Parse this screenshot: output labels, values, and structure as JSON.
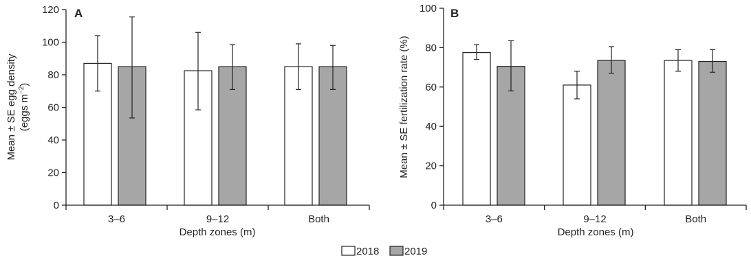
{
  "legend": {
    "entries": [
      {
        "label": "2018",
        "color": "#ffffff"
      },
      {
        "label": "2019",
        "color": "#a6a6a6"
      }
    ]
  },
  "chart_data": [
    {
      "type": "bar",
      "panel_label": "A",
      "categories": [
        "3–6",
        "9–12",
        "Both"
      ],
      "series": [
        {
          "name": "2018",
          "values": [
            87,
            82.5,
            85
          ],
          "se_low": [
            70,
            58.5,
            71
          ],
          "se_high": [
            104,
            106,
            99
          ],
          "color": "#ffffff"
        },
        {
          "name": "2019",
          "values": [
            85,
            85,
            85
          ],
          "se_low": [
            53.5,
            71,
            71
          ],
          "se_high": [
            115.5,
            98.5,
            98
          ],
          "color": "#a6a6a6"
        }
      ],
      "xlabel": "Depth zones (m)",
      "ylabel_line1": "Mean ± SE egg density",
      "ylabel_line2_prefix": "(eggs m",
      "ylabel_line2_sup": "−2",
      "ylabel_line2_suffix": ")",
      "ylim": [
        0,
        120
      ],
      "yticks": [
        "0",
        "20",
        "40",
        "60",
        "80",
        "100",
        "120"
      ],
      "grid": false,
      "legend_position": "bottom-center"
    },
    {
      "type": "bar",
      "panel_label": "B",
      "categories": [
        "3–6",
        "9–12",
        "Both"
      ],
      "series": [
        {
          "name": "2018",
          "values": [
            77.5,
            61,
            73.5
          ],
          "se_low": [
            74,
            54,
            68
          ],
          "se_high": [
            81.5,
            68,
            79
          ],
          "color": "#ffffff"
        },
        {
          "name": "2019",
          "values": [
            70.5,
            73.5,
            73
          ],
          "se_low": [
            58,
            67,
            67.5
          ],
          "se_high": [
            83.5,
            80.5,
            79
          ],
          "color": "#a6a6a6"
        }
      ],
      "xlabel": "Depth zones (m)",
      "ylabel": "Mean ± SE fertilization rate (%)",
      "ylim": [
        0,
        100
      ],
      "yticks": [
        "0",
        "20",
        "40",
        "60",
        "80",
        "100"
      ],
      "grid": false,
      "legend_position": "bottom-center"
    }
  ]
}
